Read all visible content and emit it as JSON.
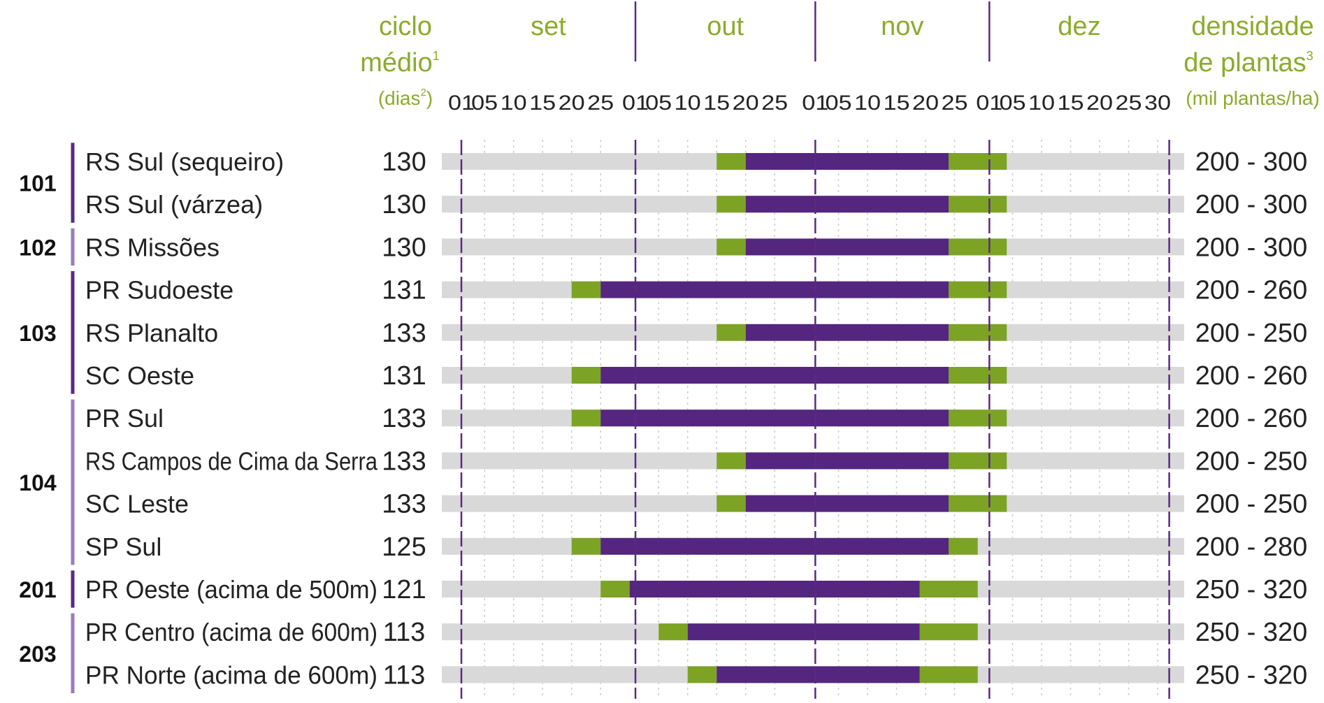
{
  "chart_data": {
    "type": "gantt",
    "header": {
      "cycle_label_line1": "ciclo",
      "cycle_label_line2": "médio",
      "cycle_label_sup": "1",
      "cycle_unit": "(dias",
      "cycle_unit_sup": "2",
      "cycle_unit_close": ")",
      "density_label_line1": "densidade",
      "density_label_line2": "de plantas",
      "density_label_sup": "3",
      "density_unit": "(mil plantas/ha)"
    },
    "months": [
      {
        "name": "set",
        "start_day": 0
      },
      {
        "name": "out",
        "start_day": 30
      },
      {
        "name": "nov",
        "start_day": 61
      },
      {
        "name": "dez",
        "start_day": 91
      }
    ],
    "day_range": [
      0,
      122
    ],
    "ticks": [
      {
        "label": "01",
        "day": 0
      },
      {
        "label": "05",
        "day": 4
      },
      {
        "label": "10",
        "day": 9
      },
      {
        "label": "15",
        "day": 14
      },
      {
        "label": "20",
        "day": 19
      },
      {
        "label": "25",
        "day": 24
      },
      {
        "label": "01",
        "day": 30
      },
      {
        "label": "05",
        "day": 34
      },
      {
        "label": "10",
        "day": 39
      },
      {
        "label": "15",
        "day": 44
      },
      {
        "label": "20",
        "day": 49
      },
      {
        "label": "25",
        "day": 54
      },
      {
        "label": "01",
        "day": 61
      },
      {
        "label": "05",
        "day": 65
      },
      {
        "label": "10",
        "day": 70
      },
      {
        "label": "15",
        "day": 75
      },
      {
        "label": "20",
        "day": 80
      },
      {
        "label": "25",
        "day": 85
      },
      {
        "label": "01",
        "day": 91
      },
      {
        "label": "05",
        "day": 95
      },
      {
        "label": "10",
        "day": 100
      },
      {
        "label": "15",
        "day": 105
      },
      {
        "label": "20",
        "day": 110
      },
      {
        "label": "25",
        "day": 115
      },
      {
        "label": "30",
        "day": 120
      }
    ],
    "groups": [
      {
        "label": "101",
        "color": "#5a2a82",
        "rows": [
          0,
          1
        ]
      },
      {
        "label": "102",
        "color": "#9a7bbf",
        "rows": [
          2
        ]
      },
      {
        "label": "103",
        "color": "#5a2a82",
        "rows": [
          3,
          4,
          5
        ]
      },
      {
        "label": "104",
        "color": "#9a7bbf",
        "rows": [
          6,
          7,
          8,
          9
        ]
      },
      {
        "label": "201",
        "color": "#5a2a82",
        "rows": [
          10
        ]
      },
      {
        "label": "203",
        "color": "#9a7bbf",
        "rows": [
          11,
          12
        ]
      }
    ],
    "rows": [
      {
        "region": "RS Sul (sequeiro)",
        "cycle": "130",
        "density": "200 - 300",
        "segments": [
          {
            "start": 44,
            "end": 49,
            "kind": "green"
          },
          {
            "start": 49,
            "end": 84,
            "kind": "purple"
          },
          {
            "start": 84,
            "end": 94,
            "kind": "green"
          }
        ]
      },
      {
        "region": "RS Sul (várzea)",
        "cycle": "130",
        "density": "200 - 300",
        "segments": [
          {
            "start": 44,
            "end": 49,
            "kind": "green"
          },
          {
            "start": 49,
            "end": 84,
            "kind": "purple"
          },
          {
            "start": 84,
            "end": 94,
            "kind": "green"
          }
        ]
      },
      {
        "region": "RS Missões",
        "cycle": "130",
        "density": "200 - 300",
        "segments": [
          {
            "start": 44,
            "end": 49,
            "kind": "green"
          },
          {
            "start": 49,
            "end": 84,
            "kind": "purple"
          },
          {
            "start": 84,
            "end": 94,
            "kind": "green"
          }
        ]
      },
      {
        "region": "PR Sudoeste",
        "cycle": "131",
        "density": "200 - 260",
        "segments": [
          {
            "start": 19,
            "end": 24,
            "kind": "green"
          },
          {
            "start": 24,
            "end": 84,
            "kind": "purple"
          },
          {
            "start": 84,
            "end": 94,
            "kind": "green"
          }
        ]
      },
      {
        "region": "RS Planalto",
        "cycle": "133",
        "density": "200 - 250",
        "segments": [
          {
            "start": 44,
            "end": 49,
            "kind": "green"
          },
          {
            "start": 49,
            "end": 84,
            "kind": "purple"
          },
          {
            "start": 84,
            "end": 94,
            "kind": "green"
          }
        ]
      },
      {
        "region": "SC Oeste",
        "cycle": "131",
        "density": "200 - 260",
        "segments": [
          {
            "start": 19,
            "end": 24,
            "kind": "green"
          },
          {
            "start": 24,
            "end": 84,
            "kind": "purple"
          },
          {
            "start": 84,
            "end": 94,
            "kind": "green"
          }
        ]
      },
      {
        "region": "PR Sul",
        "cycle": "133",
        "density": "200 - 260",
        "segments": [
          {
            "start": 19,
            "end": 24,
            "kind": "green"
          },
          {
            "start": 24,
            "end": 84,
            "kind": "purple"
          },
          {
            "start": 84,
            "end": 94,
            "kind": "green"
          }
        ]
      },
      {
        "region": "RS Campos de Cima da Serra",
        "cycle": "133",
        "density": "200 - 250",
        "segments": [
          {
            "start": 44,
            "end": 49,
            "kind": "green"
          },
          {
            "start": 49,
            "end": 84,
            "kind": "purple"
          },
          {
            "start": 84,
            "end": 94,
            "kind": "green"
          }
        ]
      },
      {
        "region": "SC Leste",
        "cycle": "133",
        "density": "200 - 250",
        "segments": [
          {
            "start": 44,
            "end": 49,
            "kind": "green"
          },
          {
            "start": 49,
            "end": 84,
            "kind": "purple"
          },
          {
            "start": 84,
            "end": 94,
            "kind": "green"
          }
        ]
      },
      {
        "region": "SP Sul",
        "cycle": "125",
        "density": "200 - 280",
        "segments": [
          {
            "start": 19,
            "end": 24,
            "kind": "green"
          },
          {
            "start": 24,
            "end": 84,
            "kind": "purple"
          },
          {
            "start": 84,
            "end": 89,
            "kind": "green"
          }
        ]
      },
      {
        "region": "PR Oeste (acima de 500m)",
        "cycle": "121",
        "density": "250 - 320",
        "segments": [
          {
            "start": 24,
            "end": 29,
            "kind": "green"
          },
          {
            "start": 29,
            "end": 79,
            "kind": "purple"
          },
          {
            "start": 79,
            "end": 89,
            "kind": "green"
          }
        ]
      },
      {
        "region": "PR Centro (acima de 600m)",
        "cycle": "113",
        "density": "250 - 320",
        "segments": [
          {
            "start": 34,
            "end": 39,
            "kind": "green"
          },
          {
            "start": 39,
            "end": 79,
            "kind": "purple"
          },
          {
            "start": 79,
            "end": 89,
            "kind": "green"
          }
        ]
      },
      {
        "region": "PR Norte (acima de 600m)",
        "cycle": "113",
        "density": "250 - 320",
        "segments": [
          {
            "start": 39,
            "end": 44,
            "kind": "green"
          },
          {
            "start": 44,
            "end": 79,
            "kind": "purple"
          },
          {
            "start": 79,
            "end": 89,
            "kind": "green"
          }
        ]
      }
    ],
    "colors": {
      "track": "#d9d9d9",
      "green": "#7da324",
      "purple": "#55267f",
      "header_green": "#8aab2c",
      "month_line": "#5a2a82",
      "grid_dot": "#cccccc"
    }
  }
}
